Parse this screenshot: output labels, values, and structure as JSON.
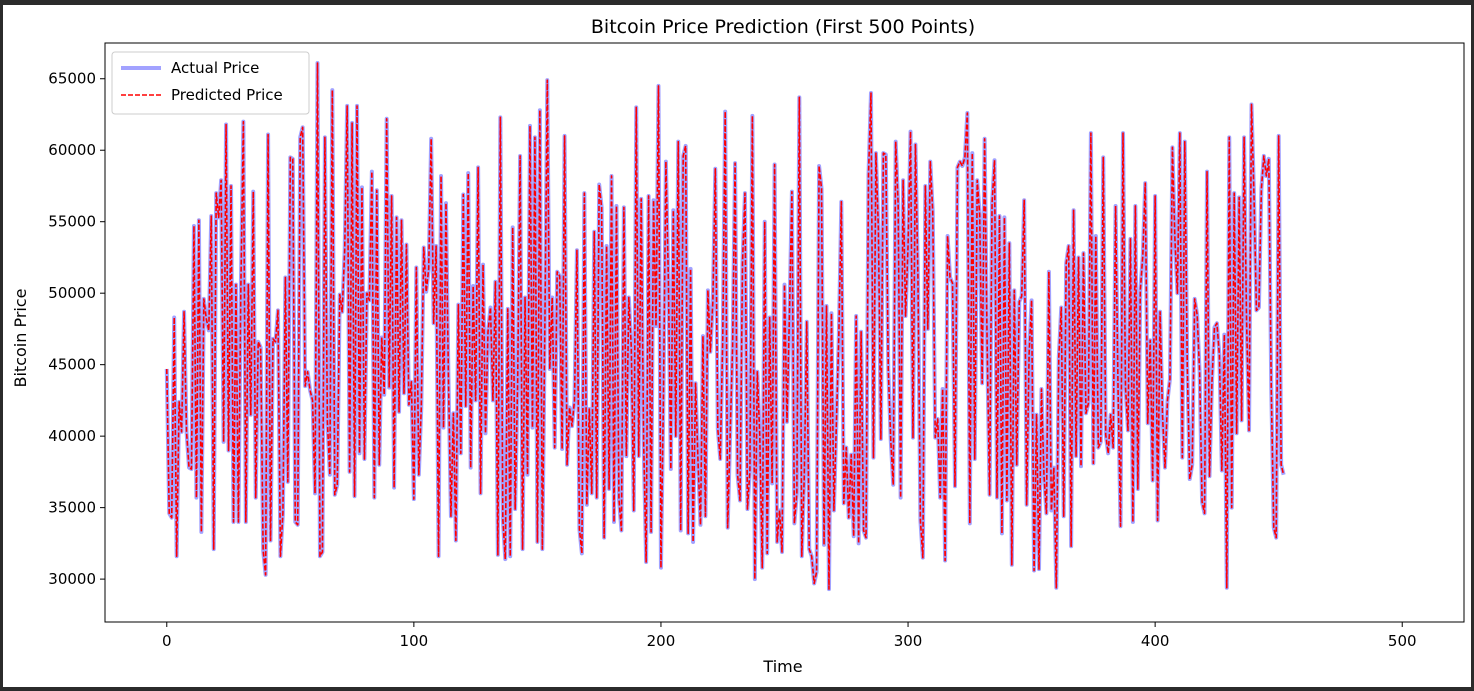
{
  "chart_data": {
    "type": "line",
    "title": "Bitcoin Price Prediction (First 500 Points)",
    "xlabel": "Time",
    "ylabel": "Bitcoin Price",
    "xlim": [
      -25,
      525
    ],
    "ylim": [
      27000,
      67500
    ],
    "x_ticks": [
      0,
      100,
      200,
      300,
      400,
      500
    ],
    "y_ticks": [
      30000,
      35000,
      40000,
      45000,
      50000,
      55000,
      60000,
      65000
    ],
    "grid": false,
    "legend_position": "top-left",
    "x_range": [
      0,
      499
    ],
    "series": [
      {
        "name": "Actual Price",
        "color": "#6464ff",
        "style": "solid",
        "values": [
          44700,
          34600,
          34300,
          48300,
          31600,
          42400,
          40300,
          48700,
          40300,
          37800,
          37700,
          54700,
          35700,
          55100,
          33300,
          49600,
          48200,
          47400,
          55400,
          32100,
          57000,
          55300,
          57900,
          39600,
          61800,
          39000,
          57500,
          34000,
          50600,
          34000,
          50600,
          62000,
          34000,
          50600,
          41500,
          57100,
          35700,
          46600,
          46200,
          32000,
          30300,
          61100,
          32700,
          46800,
          46600,
          48800,
          31600,
          34600,
          51100,
          36800,
          59500,
          59400,
          34000,
          33800,
          60900,
          61600,
          43500,
          44500,
          43200,
          42500,
          36000,
          66100,
          31600,
          31900,
          60900,
          41000,
          37300,
          64200,
          35900,
          36600,
          49900,
          48700,
          53000,
          63100,
          37500,
          61900,
          35800,
          63100,
          38800,
          57400,
          38400,
          50000,
          49500,
          58500,
          35700,
          57200,
          38000,
          46900,
          42900,
          62200,
          43400,
          56800,
          36400,
          55300,
          41700,
          55100,
          43000,
          53400,
          42200,
          43800,
          35600,
          51800,
          37300,
          42000,
          53200,
          50100,
          51700,
          60800,
          47900,
          53300,
          31600,
          58200,
          40600,
          56300,
          44000,
          34400,
          41600,
          32700,
          49200,
          38800,
          56900,
          42100,
          58400,
          37800,
          50500,
          42500,
          58800,
          36000,
          52000,
          40200,
          47300,
          49000,
          42500,
          50800,
          31700,
          62300,
          34200,
          31400,
          48900,
          31600,
          54600,
          34900,
          43700,
          59600,
          32100,
          49700,
          37300,
          61700,
          40600,
          60900,
          32600,
          62800,
          32100,
          47400,
          64900,
          44700,
          49700,
          39200,
          51500,
          51200,
          39100,
          61000,
          38000,
          42000,
          40700,
          42500,
          53000,
          33500,
          31800,
          57000,
          35200,
          41900,
          36000,
          54300,
          35700,
          57600,
          56000,
          32900,
          53300,
          36300,
          58200,
          34000,
          56100,
          35600,
          33400,
          56000,
          38600,
          49700,
          46200,
          34800,
          63000,
          38600,
          56600,
          39500,
          31200,
          56800,
          33300,
          56500,
          47700,
          64500,
          30800,
          42600,
          59200,
          51000,
          37700,
          55800,
          40000,
          60600,
          33400,
          59600,
          60300,
          33200,
          51700,
          32600,
          43700,
          38200,
          33800,
          47000,
          34400,
          50200,
          45900,
          49400,
          58700,
          40500,
          38400,
          46800,
          62700,
          33600,
          40000,
          46300,
          59100,
          37300,
          35500,
          52100,
          57000,
          34900,
          37600,
          62400,
          30000,
          44500,
          40000,
          30800,
          55000,
          31800,
          48300,
          36700,
          59000,
          32600,
          34800,
          31900,
          50600,
          41000,
          48500,
          57100,
          33900,
          36000,
          63700,
          31600,
          37200,
          48000,
          32100,
          31600,
          29700,
          30500,
          58900,
          57300,
          32400,
          49100,
          29300,
          48600,
          34800,
          40900,
          47100,
          56400,
          35300,
          39200,
          34300,
          38700,
          33000,
          48400,
          32500,
          47300,
          33400,
          32900,
          58300,
          64000,
          38500,
          59800,
          54500,
          39800,
          59800,
          59700,
          44700,
          39700,
          36600,
          60600,
          56200,
          35700,
          57900,
          48400,
          53300,
          61300,
          39900,
          60400,
          51200,
          34100,
          31500,
          57500,
          47500,
          59200,
          55700,
          39900,
          41200,
          35700,
          43300,
          31300,
          54000,
          51100,
          50700,
          36500,
          58800,
          59200,
          58900,
          59500,
          62600,
          33900,
          59800,
          38400,
          57900,
          55500,
          43700,
          60800,
          46500,
          35900,
          56300,
          59300,
          35700,
          55400,
          33200,
          55300,
          35500,
          53500,
          31000,
          50200,
          38000,
          49400,
          49800,
          56500,
          35200,
          45800,
          49500,
          30600,
          41500,
          30700,
          43300,
          37300,
          34600,
          51500,
          34800,
          37800,
          29400,
          45500,
          49000,
          34400,
          52100,
          53300,
          32300,
          55800,
          38600,
          52500,
          37900,
          52800,
          41600,
          42300,
          61200,
          38100,
          54000,
          39200,
          39600,
          59500,
          40100,
          38800,
          41500,
          39200,
          56100,
          43200,
          33700,
          61200,
          43400,
          40400,
          53800,
          34000,
          56100,
          36300,
          50200,
          52600,
          57700,
          40900,
          46700,
          36900,
          56800,
          34100,
          48700,
          41400,
          37800,
          42500,
          44000,
          60200,
          53800,
          50000,
          61200,
          38500,
          60600,
          45000,
          37000,
          38000,
          49600,
          48500,
          44500,
          35400,
          34600,
          58500,
          37200,
          43800,
          47600,
          47900,
          45700,
          37600,
          47100,
          29400,
          60900,
          35000,
          57000,
          40200,
          56700,
          41100,
          60900,
          48100,
          40400,
          63200,
          56900,
          48800,
          49000,
          57300,
          59600,
          58200,
          59400,
          43300,
          33600,
          32900,
          61000,
          38000,
          37300
        ]
      },
      {
        "name": "Predicted Price",
        "color": "#ff0000",
        "style": "dashed",
        "values": [
          44700,
          34600,
          34300,
          48300,
          31600,
          42400,
          40300,
          48700,
          40300,
          37800,
          37700,
          54700,
          35700,
          55100,
          33300,
          49600,
          48200,
          47400,
          55400,
          32100,
          57000,
          55300,
          57900,
          39600,
          61800,
          39000,
          57500,
          34000,
          50600,
          34000,
          50600,
          62000,
          34000,
          50600,
          41500,
          57100,
          35700,
          46600,
          46200,
          32000,
          30300,
          61100,
          32700,
          46800,
          46600,
          48800,
          31600,
          34600,
          51100,
          36800,
          59500,
          59400,
          34000,
          33800,
          60900,
          61600,
          43500,
          44500,
          43200,
          42500,
          36000,
          66100,
          31600,
          31900,
          60900,
          41000,
          37300,
          64200,
          35900,
          36600,
          49900,
          48700,
          53000,
          63100,
          37500,
          61900,
          35800,
          63100,
          38800,
          57400,
          38400,
          50000,
          49500,
          58500,
          35700,
          57200,
          38000,
          46900,
          42900,
          62200,
          43400,
          56800,
          36400,
          55300,
          41700,
          55100,
          43000,
          53400,
          42200,
          43800,
          35600,
          51800,
          37300,
          42000,
          53200,
          50100,
          51700,
          60800,
          47900,
          53300,
          31600,
          58200,
          40600,
          56300,
          44000,
          34400,
          41600,
          32700,
          49200,
          38800,
          56900,
          42100,
          58400,
          37800,
          50500,
          42500,
          58800,
          36000,
          52000,
          40200,
          47300,
          49000,
          42500,
          50800,
          31700,
          62300,
          34200,
          31400,
          48900,
          31600,
          54600,
          34900,
          43700,
          59600,
          32100,
          49700,
          37300,
          61700,
          40600,
          60900,
          32600,
          62800,
          32100,
          47400,
          64900,
          44700,
          49700,
          39200,
          51500,
          51200,
          39100,
          61000,
          38000,
          42000,
          40700,
          42500,
          53000,
          33500,
          31800,
          57000,
          35200,
          41900,
          36000,
          54300,
          35700,
          57600,
          56000,
          32900,
          53300,
          36300,
          58200,
          34000,
          56100,
          35600,
          33400,
          56000,
          38600,
          49700,
          46200,
          34800,
          63000,
          38600,
          56600,
          39500,
          31200,
          56800,
          33300,
          56500,
          47700,
          64500,
          30800,
          42600,
          59200,
          51000,
          37700,
          55800,
          40000,
          60600,
          33400,
          59600,
          60300,
          33200,
          51700,
          32600,
          43700,
          38200,
          33800,
          47000,
          34400,
          50200,
          45900,
          49400,
          58700,
          40500,
          38400,
          46800,
          62700,
          33600,
          40000,
          46300,
          59100,
          37300,
          35500,
          52100,
          57000,
          34900,
          37600,
          62400,
          30000,
          44500,
          40000,
          30800,
          55000,
          31800,
          48300,
          36700,
          59000,
          32600,
          34800,
          31900,
          50600,
          41000,
          48500,
          57100,
          33900,
          36000,
          63700,
          31600,
          37200,
          48000,
          32100,
          31600,
          29700,
          30500,
          58900,
          57300,
          32400,
          49100,
          29300,
          48600,
          34800,
          40900,
          47100,
          56400,
          35300,
          39200,
          34300,
          38700,
          33000,
          48400,
          32500,
          47300,
          33400,
          32900,
          58300,
          64000,
          38500,
          59800,
          54500,
          39800,
          59800,
          59700,
          44700,
          39700,
          36600,
          60600,
          56200,
          35700,
          57900,
          48400,
          53300,
          61300,
          39900,
          60400,
          51200,
          34100,
          31500,
          57500,
          47500,
          59200,
          55700,
          39900,
          41200,
          35700,
          43300,
          31300,
          54000,
          51100,
          50700,
          36500,
          58800,
          59200,
          58900,
          59500,
          62600,
          33900,
          59800,
          38400,
          57900,
          55500,
          43700,
          60800,
          46500,
          35900,
          56300,
          59300,
          35700,
          55400,
          33200,
          55300,
          35500,
          53500,
          31000,
          50200,
          38000,
          49400,
          49800,
          56500,
          35200,
          45800,
          49500,
          30600,
          41500,
          30700,
          43300,
          37300,
          34600,
          51500,
          34800,
          37800,
          29400,
          45500,
          49000,
          34400,
          52100,
          53300,
          32300,
          55800,
          38600,
          52500,
          37900,
          52800,
          41600,
          42300,
          61200,
          38100,
          54000,
          39200,
          39600,
          59500,
          40100,
          38800,
          41500,
          39200,
          56100,
          43200,
          33700,
          61200,
          43400,
          40400,
          53800,
          34000,
          56100,
          36300,
          50200,
          52600,
          57700,
          40900,
          46700,
          36900,
          56800,
          34100,
          48700,
          41400,
          37800,
          42500,
          44000,
          60200,
          53800,
          50000,
          61200,
          38500,
          60600,
          45000,
          37000,
          38000,
          49600,
          48500,
          44500,
          35400,
          34600,
          58500,
          37200,
          43800,
          47600,
          47900,
          45700,
          37600,
          47100,
          29400,
          60900,
          35000,
          57000,
          40200,
          56700,
          41100,
          60900,
          48100,
          40400,
          63200,
          56900,
          48800,
          49000,
          57300,
          59600,
          58200,
          59400,
          43300,
          33600,
          32900,
          61000,
          38000,
          37300
        ]
      }
    ]
  }
}
